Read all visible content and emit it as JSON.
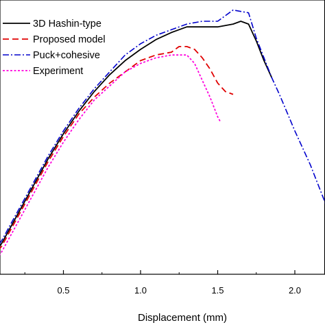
{
  "chart_data": {
    "type": "line",
    "title": "",
    "xlabel": "Displacement (mm)",
    "ylabel": "",
    "xlim": [
      0.0,
      2.2
    ],
    "ylim": [
      0,
      100
    ],
    "x_ticks": [
      0.5,
      1.0,
      1.5,
      2.0
    ],
    "x_tick_labels": [
      "0.5",
      "1.0",
      "1.5",
      "2.0"
    ],
    "grid": false,
    "legend_position": "top-left",
    "series": [
      {
        "name": "3D Hashin-type",
        "color": "#000000",
        "dash": "solid",
        "points": [
          [
            0.0,
            3
          ],
          [
            0.1,
            11
          ],
          [
            0.2,
            21
          ],
          [
            0.3,
            31
          ],
          [
            0.4,
            41
          ],
          [
            0.5,
            50
          ],
          [
            0.6,
            58
          ],
          [
            0.7,
            65
          ],
          [
            0.8,
            71
          ],
          [
            0.9,
            76
          ],
          [
            1.0,
            80
          ],
          [
            1.1,
            83.5
          ],
          [
            1.2,
            86
          ],
          [
            1.3,
            88
          ],
          [
            1.4,
            88
          ],
          [
            1.5,
            88
          ],
          [
            1.6,
            89
          ],
          [
            1.65,
            90
          ],
          [
            1.7,
            89
          ],
          [
            1.75,
            83
          ],
          [
            1.8,
            76
          ],
          [
            1.85,
            70
          ]
        ]
      },
      {
        "name": "Proposed model",
        "color": "#e00000",
        "dash": "dash",
        "points": [
          [
            0.0,
            3
          ],
          [
            0.1,
            10
          ],
          [
            0.2,
            20
          ],
          [
            0.3,
            30
          ],
          [
            0.4,
            40
          ],
          [
            0.5,
            49
          ],
          [
            0.6,
            57
          ],
          [
            0.7,
            63
          ],
          [
            0.8,
            68
          ],
          [
            0.9,
            72
          ],
          [
            1.0,
            76
          ],
          [
            1.1,
            78
          ],
          [
            1.2,
            79
          ],
          [
            1.25,
            81
          ],
          [
            1.3,
            81
          ],
          [
            1.35,
            80
          ],
          [
            1.4,
            77
          ],
          [
            1.45,
            73
          ],
          [
            1.5,
            68
          ],
          [
            1.55,
            65
          ],
          [
            1.6,
            64
          ]
        ]
      },
      {
        "name": "Puck+cohesive",
        "color": "#0000cc",
        "dash": "dashdot",
        "points": [
          [
            0.0,
            4
          ],
          [
            0.1,
            12
          ],
          [
            0.2,
            22
          ],
          [
            0.3,
            32
          ],
          [
            0.4,
            42
          ],
          [
            0.5,
            51
          ],
          [
            0.6,
            59
          ],
          [
            0.7,
            66
          ],
          [
            0.8,
            72
          ],
          [
            0.9,
            78
          ],
          [
            1.0,
            82
          ],
          [
            1.1,
            85
          ],
          [
            1.2,
            87
          ],
          [
            1.3,
            89
          ],
          [
            1.4,
            90
          ],
          [
            1.5,
            90
          ],
          [
            1.6,
            94
          ],
          [
            1.7,
            93
          ],
          [
            1.75,
            84
          ],
          [
            1.8,
            77
          ],
          [
            1.85,
            70
          ],
          [
            1.9,
            64
          ],
          [
            2.0,
            51
          ],
          [
            2.1,
            39
          ],
          [
            2.2,
            25
          ]
        ]
      },
      {
        "name": "Experiment",
        "color": "#ff00dd",
        "dash": "dot",
        "points": [
          [
            0.0,
            0
          ],
          [
            0.1,
            8
          ],
          [
            0.2,
            18
          ],
          [
            0.3,
            28
          ],
          [
            0.4,
            38
          ],
          [
            0.5,
            47
          ],
          [
            0.6,
            55
          ],
          [
            0.7,
            62
          ],
          [
            0.8,
            67
          ],
          [
            0.9,
            72
          ],
          [
            1.0,
            75
          ],
          [
            1.1,
            77
          ],
          [
            1.2,
            78
          ],
          [
            1.3,
            78
          ],
          [
            1.35,
            75
          ],
          [
            1.4,
            69
          ],
          [
            1.45,
            63
          ],
          [
            1.5,
            56
          ],
          [
            1.52,
            54
          ]
        ]
      }
    ]
  }
}
